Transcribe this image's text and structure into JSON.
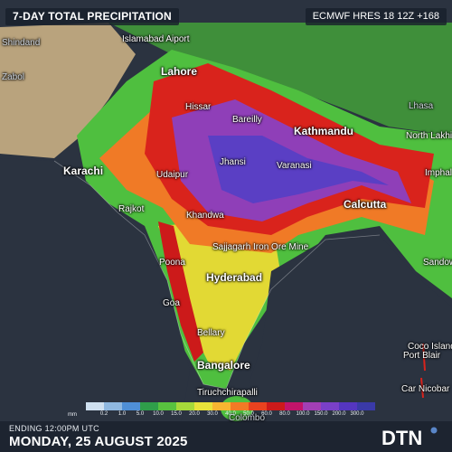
{
  "header": {
    "title": "7-DAY TOTAL PRECIPITATION",
    "model": "ECMWF HRES 18 12Z +168"
  },
  "cities": [
    {
      "name": "Islamabad Aiport",
      "style": "normal"
    },
    {
      "name": "Shindand",
      "style": "dim"
    },
    {
      "name": "Zabol",
      "style": "dim"
    },
    {
      "name": "Lahore",
      "style": "big"
    },
    {
      "name": "Hissar",
      "style": "normal"
    },
    {
      "name": "Bareilly",
      "style": "normal"
    },
    {
      "name": "Kathmandu",
      "style": "big"
    },
    {
      "name": "Lhasa",
      "style": "dim"
    },
    {
      "name": "North Lakhimpur",
      "style": "normal"
    },
    {
      "name": "Imphal",
      "style": "normal"
    },
    {
      "name": "Karachi",
      "style": "big"
    },
    {
      "name": "Udaipur",
      "style": "normal"
    },
    {
      "name": "Jhansi",
      "style": "normal"
    },
    {
      "name": "Varanasi",
      "style": "normal"
    },
    {
      "name": "Rajkot",
      "style": "normal"
    },
    {
      "name": "Khandwa",
      "style": "normal"
    },
    {
      "name": "Calcutta",
      "style": "big"
    },
    {
      "name": "Sajjagarh Iron Ore Mine",
      "style": "normal"
    },
    {
      "name": "Poona",
      "style": "normal"
    },
    {
      "name": "Hyderabad",
      "style": "big"
    },
    {
      "name": "Sandow",
      "style": "normal"
    },
    {
      "name": "Goa",
      "style": "normal"
    },
    {
      "name": "Bellary",
      "style": "normal"
    },
    {
      "name": "Bangalore",
      "style": "big"
    },
    {
      "name": "Tiruchchirapalli",
      "style": "normal"
    },
    {
      "name": "Colombo",
      "style": "dim"
    },
    {
      "name": "Coco Island",
      "style": "normal"
    },
    {
      "name": "Port Blair",
      "style": "normal"
    },
    {
      "name": "Car Nicobar",
      "style": "normal"
    }
  ],
  "legend": {
    "unit": "mm",
    "ticks": [
      "0.2",
      "1.0",
      "5.0",
      "10.0",
      "15.0",
      "20.0",
      "30.0",
      "40.0",
      "50.0",
      "60.0",
      "80.0",
      "100.0",
      "150.0",
      "200.0",
      "300.0"
    ],
    "colors": [
      "#cfe0f0",
      "#8fb8e0",
      "#4f8fd6",
      "#2f9e4a",
      "#58c23f",
      "#a6d93a",
      "#e8e23a",
      "#f7b531",
      "#f27a25",
      "#e8421f",
      "#cc1a1a",
      "#c2146a",
      "#a23fb5",
      "#7a40c8",
      "#5536c0",
      "#3a3aa8"
    ]
  },
  "footer": {
    "ending": "ENDING 12:00PM UTC",
    "date": "MONDAY, 25 AUGUST 2025",
    "brand": "DTN"
  }
}
